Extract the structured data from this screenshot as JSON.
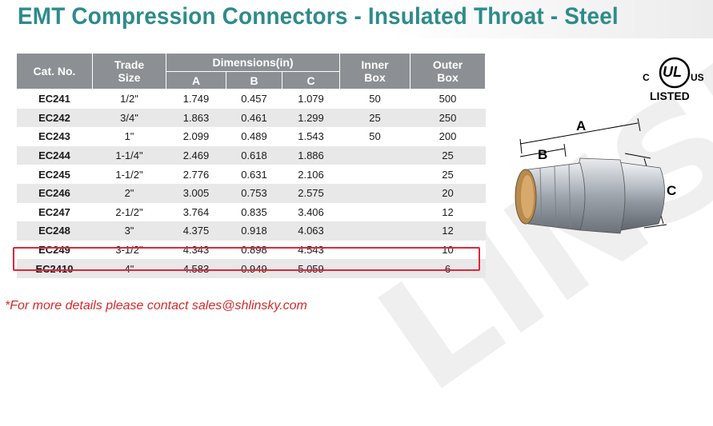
{
  "title": "EMT Compression Connectors - Insulated Throat - Steel",
  "watermark": "LINSKY",
  "table": {
    "headers": {
      "cat_no": "Cat. No.",
      "trade_size_line1": "Trade",
      "trade_size_line2": "Size",
      "dimensions": "Dimensions(in)",
      "col_a": "A",
      "col_b": "B",
      "col_c": "C",
      "inner_box_line1": "Inner",
      "inner_box_line2": "Box",
      "outer_box_line1": "Outer",
      "outer_box_line2": "Box"
    },
    "rows": [
      {
        "cat": "EC241",
        "size": "1/2\"",
        "a": "1.749",
        "b": "0.457",
        "c": "1.079",
        "inner": "50",
        "outer": "500"
      },
      {
        "cat": "EC242",
        "size": "3/4\"",
        "a": "1.863",
        "b": "0.461",
        "c": "1.299",
        "inner": "25",
        "outer": "250"
      },
      {
        "cat": "EC243",
        "size": "1\"",
        "a": "2.099",
        "b": "0.489",
        "c": "1.543",
        "inner": "50",
        "outer": "200"
      },
      {
        "cat": "EC244",
        "size": "1-1/4\"",
        "a": "2.469",
        "b": "0.618",
        "c": "1.886",
        "inner": "",
        "outer": "25"
      },
      {
        "cat": "EC245",
        "size": "1-1/2\"",
        "a": "2.776",
        "b": "0.631",
        "c": "2.106",
        "inner": "",
        "outer": "25"
      },
      {
        "cat": "EC246",
        "size": "2\"",
        "a": "3.005",
        "b": "0.753",
        "c": "2.575",
        "inner": "",
        "outer": "20"
      },
      {
        "cat": "EC247",
        "size": "2-1/2\"",
        "a": "3.764",
        "b": "0.835",
        "c": "3.406",
        "inner": "",
        "outer": "12"
      },
      {
        "cat": "EC248",
        "size": "3\"",
        "a": "4.375",
        "b": "0.918",
        "c": "4.063",
        "inner": "",
        "outer": "12"
      },
      {
        "cat": "EC249",
        "size": "3-1/2\"",
        "a": "4.343",
        "b": "0.898",
        "c": "4.543",
        "inner": "",
        "outer": "10"
      },
      {
        "cat": "EC2410",
        "size": "4\"",
        "a": "4.583",
        "b": "0.949",
        "c": "5.059",
        "inner": "",
        "outer": "6"
      }
    ]
  },
  "certification": {
    "mark": "UL",
    "left": "C",
    "right": "US",
    "listed": "LISTED"
  },
  "diagram_labels": {
    "a": "A",
    "b": "B",
    "c": "C"
  },
  "colors": {
    "title": "#2e8b8b",
    "header_bg": "#8c8f93",
    "highlight": "#e0263a",
    "footnote": "#d42a2a"
  },
  "footnote": "*For more details please contact sales@shlinsky.com"
}
